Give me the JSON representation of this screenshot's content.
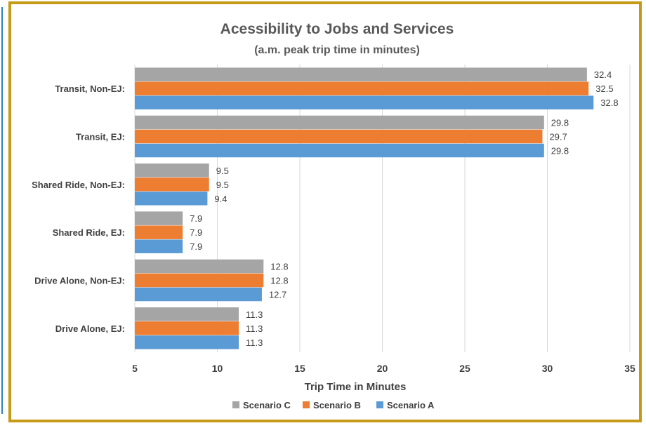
{
  "chart_data": {
    "type": "bar",
    "orientation": "horizontal",
    "title": "Acessibility to Jobs and Services",
    "subtitle": "(a.m. peak trip time in minutes)",
    "xlabel": "Trip Time in Minutes",
    "ylabel": "",
    "xlim": [
      5,
      35
    ],
    "xticks": [
      5,
      10,
      15,
      20,
      25,
      30,
      35
    ],
    "grid": true,
    "legend_position": "bottom",
    "categories": [
      "Transit, Non-EJ:",
      "Transit, EJ:",
      "Shared Ride, Non-EJ:",
      "Shared Ride, EJ:",
      "Drive Alone, Non-EJ:",
      "Drive Alone, EJ:"
    ],
    "series": [
      {
        "name": "Scenario C",
        "color": "#a5a5a5",
        "values": [
          32.4,
          29.8,
          9.5,
          7.9,
          12.8,
          11.3
        ]
      },
      {
        "name": "Scenario B",
        "color": "#ed7d31",
        "values": [
          32.5,
          29.7,
          9.5,
          7.9,
          12.8,
          11.3
        ]
      },
      {
        "name": "Scenario A",
        "color": "#5b9bd5",
        "values": [
          32.8,
          29.8,
          9.4,
          7.9,
          12.7,
          11.3
        ]
      }
    ],
    "legend_order": [
      "Scenario C",
      "Scenario B",
      "Scenario A"
    ]
  },
  "colors": {
    "frame": "#c49a16",
    "accent_rule": "#2f7fc1"
  }
}
